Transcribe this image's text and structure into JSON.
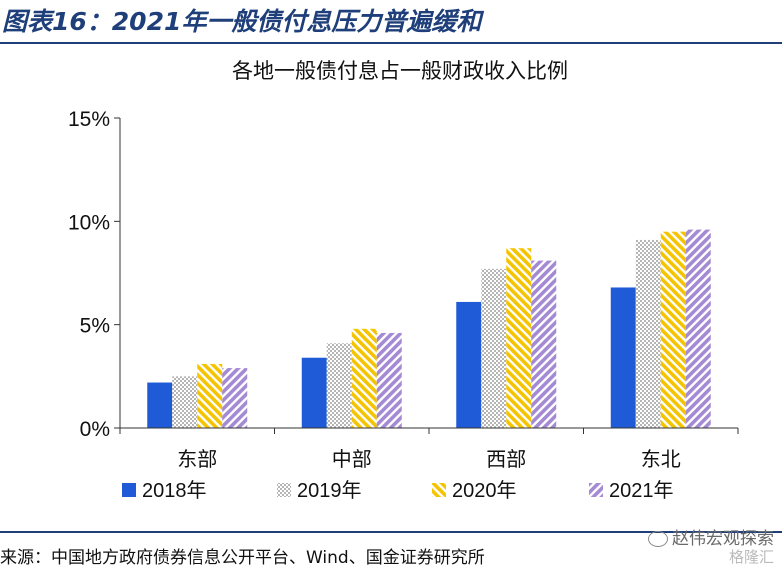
{
  "header": {
    "title": "图表16：2021年一般债付息压力普遍缓和"
  },
  "chart_data": {
    "type": "bar",
    "title": "各地一般债付息占一般财政收入比例",
    "categories": [
      "东部",
      "中部",
      "西部",
      "东北"
    ],
    "series": [
      {
        "name": "2018年",
        "values": [
          2.2,
          3.4,
          6.1,
          6.8
        ],
        "color": "#1f5bd6",
        "pattern": "solid"
      },
      {
        "name": "2019年",
        "values": [
          2.5,
          4.1,
          7.7,
          9.1
        ],
        "color": "#c8c8c8",
        "pattern": "dots"
      },
      {
        "name": "2020年",
        "values": [
          3.1,
          4.8,
          8.7,
          9.5
        ],
        "color": "#f5c400",
        "pattern": "diag-left"
      },
      {
        "name": "2021年",
        "values": [
          2.9,
          4.6,
          8.1,
          9.6
        ],
        "color": "#a48ad2",
        "pattern": "diag-right"
      }
    ],
    "yticks": [
      "0%",
      "5%",
      "10%",
      "15%"
    ],
    "ylim": [
      0,
      15
    ],
    "legend_position": "bottom"
  },
  "footer": {
    "source": "来源：中国地方政府债券信息公开平台、Wind、国金证券研究所",
    "watermark": "赵伟宏观探索",
    "watermark2": "格隆汇"
  }
}
